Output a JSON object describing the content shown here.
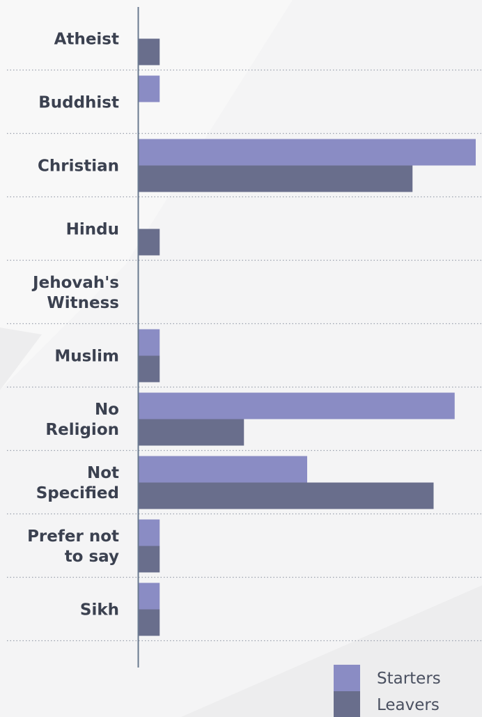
{
  "chart_data": {
    "type": "bar",
    "orientation": "horizontal",
    "categories": [
      [
        "Atheist"
      ],
      [
        "Buddhist"
      ],
      [
        "Christian"
      ],
      [
        "Hindu"
      ],
      [
        "Jehovah's",
        "Witness"
      ],
      [
        "Muslim"
      ],
      [
        "No",
        "Religion"
      ],
      [
        "Not",
        "Specified"
      ],
      [
        "Prefer not",
        "to say"
      ],
      [
        "Sikh"
      ]
    ],
    "series": [
      {
        "name": "Starters",
        "color": "#8a8cc4",
        "values": [
          0,
          1,
          16,
          0,
          0,
          1,
          15,
          8,
          1,
          1
        ]
      },
      {
        "name": "Leavers",
        "color": "#696e8c",
        "values": [
          1,
          0,
          13,
          1,
          0,
          1,
          5,
          14,
          1,
          1
        ]
      }
    ],
    "xlim": [
      0,
      16
    ],
    "grid": "dotted horizontal separators between categories",
    "legend_position": "bottom-right",
    "title": "",
    "xlabel": "",
    "ylabel": ""
  },
  "colors": {
    "axis": "#6a7a90",
    "separator": "#9aa0ad",
    "label": "#3b4150"
  }
}
